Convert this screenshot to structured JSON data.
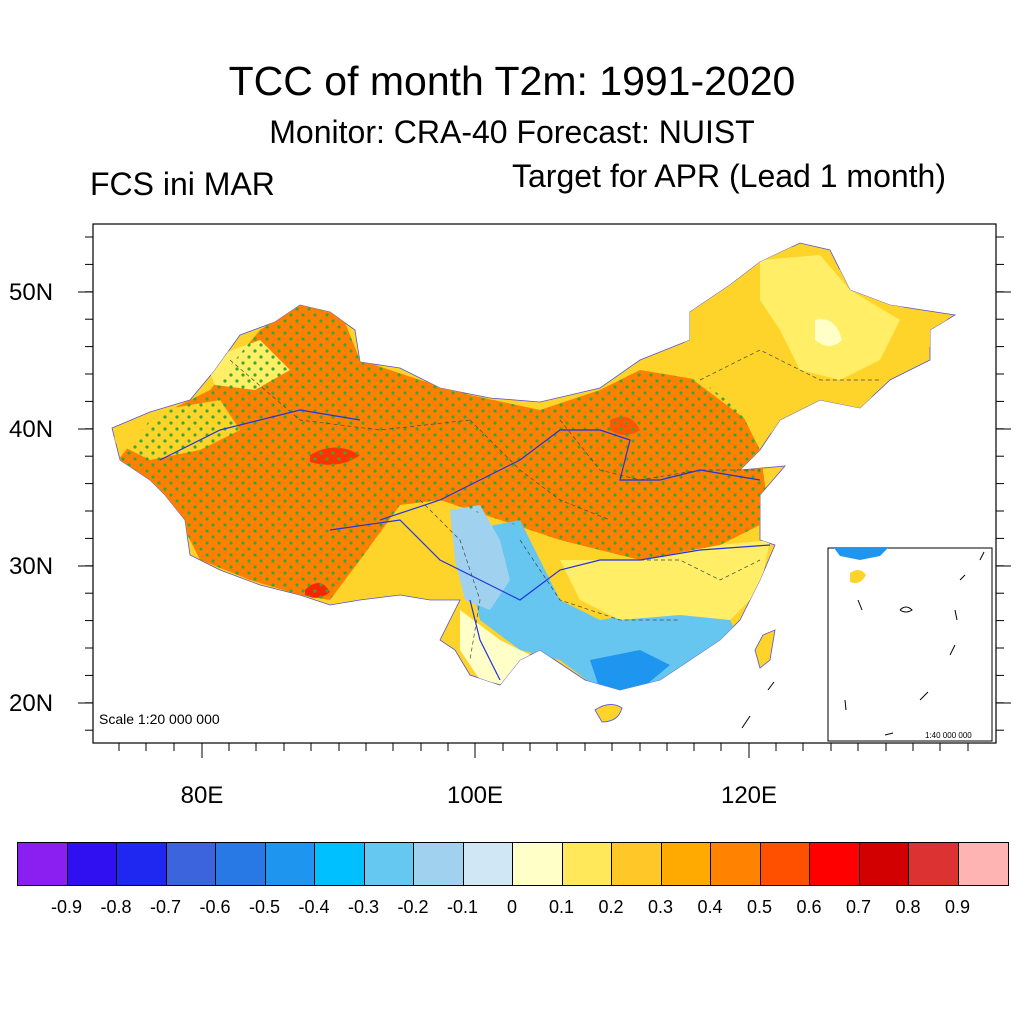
{
  "header": {
    "title": "TCC of month T2m: 1991-2020",
    "subtitle": "Monitor: CRA-40   Forecast: NUIST",
    "left_label": "FCS ini MAR",
    "right_label": "Target for APR (Lead 1 month)"
  },
  "map": {
    "lat_labels": [
      "50N",
      "40N",
      "30N",
      "20N"
    ],
    "lon_labels": [
      "80E",
      "100E",
      "120E"
    ],
    "scale_main": "Scale 1:20 000 000",
    "scale_inset": "1:40 000 000",
    "colors": {
      "strong_positive": "#ff8000",
      "moderate_positive": "#ffa500",
      "weak_positive": "#ffd42a",
      "slight_positive": "#ffff99",
      "negative": "#66c6f0",
      "river": "#2233dd",
      "stipple": "#33aa33"
    }
  },
  "colorbar": {
    "colors": [
      "#8b1ef0",
      "#3010f0",
      "#1e28f0",
      "#3c64dc",
      "#2878e6",
      "#1e96f0",
      "#00c0ff",
      "#64c8f0",
      "#a0d2f0",
      "#d0e8f5",
      "#ffffc8",
      "#ffe85a",
      "#ffc828",
      "#ffaa00",
      "#ff8200",
      "#ff5000",
      "#ff0000",
      "#d20000",
      "#dc3232",
      "#ffb4b4"
    ],
    "ticks": [
      "-0.9",
      "-0.8",
      "-0.7",
      "-0.6",
      "-0.5",
      "-0.4",
      "-0.3",
      "-0.2",
      "-0.1",
      "0",
      "0.1",
      "0.2",
      "0.3",
      "0.4",
      "0.5",
      "0.6",
      "0.7",
      "0.8",
      "0.9"
    ]
  }
}
